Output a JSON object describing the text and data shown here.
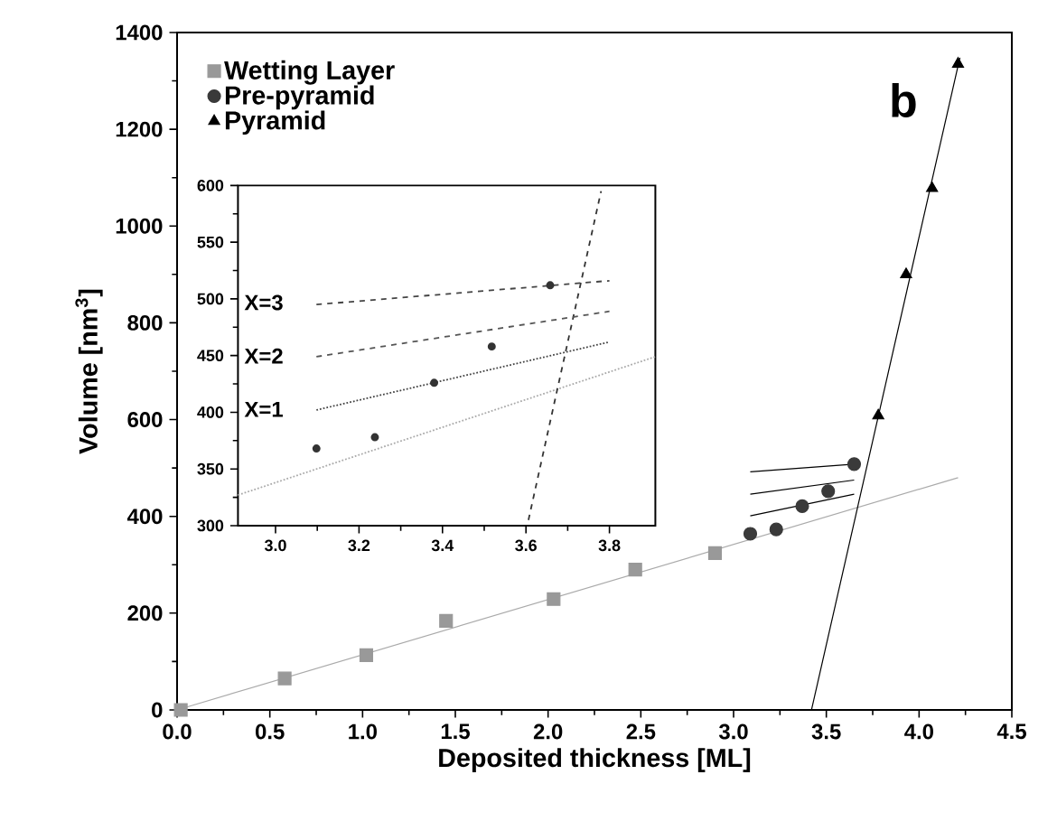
{
  "chart_data": [
    {
      "type": "scatter",
      "xlabel": "Deposited thickness [ML]",
      "ylabel": "Volume [nm$^{3}$]",
      "xlim": [
        0,
        4.5
      ],
      "ylim": [
        0,
        1400
      ],
      "xticks": [
        {
          "value": 0,
          "label": "0.0"
        },
        {
          "value": 0.5,
          "label": "0.5"
        },
        {
          "value": 1,
          "label": "1.0"
        },
        {
          "value": 1.5,
          "label": "1.5"
        },
        {
          "value": 2,
          "label": "2.0"
        },
        {
          "value": 2.5,
          "label": "2.5"
        },
        {
          "value": 3,
          "label": "3.0"
        },
        {
          "value": 3.5,
          "label": "3.5"
        },
        {
          "value": 4,
          "label": "4.0"
        },
        {
          "value": 4.5,
          "label": "4.5"
        }
      ],
      "yticks": [
        0,
        200,
        400,
        600,
        800,
        1000,
        1200,
        1400
      ],
      "legend": "top left",
      "annotations": [
        "b"
      ],
      "series": [
        {
          "type": "line",
          "marker": "none",
          "color": "#aaaaaa",
          "x": [
            0,
            4.21
          ],
          "values": [
            0,
            480
          ]
        },
        {
          "type": "line",
          "marker": "none",
          "color": "#000000",
          "x": [
            3.42,
            4.22
          ],
          "values": [
            0,
            1348
          ]
        },
        {
          "type": "line",
          "marker": "none",
          "color": "#000000",
          "x": [
            3.09,
            3.65
          ],
          "values": [
            492,
            508
          ]
        },
        {
          "type": "line",
          "marker": "none",
          "color": "#000000",
          "x": [
            3.09,
            3.65
          ],
          "values": [
            446,
            475
          ]
        },
        {
          "type": "line",
          "marker": "none",
          "color": "#000000",
          "x": [
            3.09,
            3.65
          ],
          "values": [
            401,
            446
          ]
        },
        {
          "name": "Wetting Layer",
          "marker": "square",
          "color": "#999999",
          "x": [
            0.02,
            0.58,
            1.02,
            1.45,
            2.03,
            2.47,
            2.9
          ],
          "values": [
            0,
            65,
            113,
            184,
            229,
            290,
            324
          ]
        },
        {
          "name": "Pre-pyramid",
          "marker": "circle",
          "color": "#3a3a3a",
          "x": [
            3.09,
            3.23,
            3.37,
            3.51,
            3.65
          ],
          "values": [
            364,
            373,
            421,
            452,
            508
          ]
        },
        {
          "name": "Pyramid",
          "marker": "triangle",
          "color": "#000000",
          "x": [
            3.78,
            3.93,
            4.07,
            4.21
          ],
          "values": [
            608,
            900,
            1078,
            1335
          ]
        }
      ]
    },
    {
      "type": "scatter",
      "xlim": [
        2.91,
        3.91
      ],
      "ylim": [
        300,
        600
      ],
      "xticks": [
        {
          "value": 3.0,
          "label": "3.0"
        },
        {
          "value": 3.2,
          "label": "3.2"
        },
        {
          "value": 3.4,
          "label": "3.4"
        },
        {
          "value": 3.6,
          "label": "3.6"
        },
        {
          "value": 3.8,
          "label": "3.8"
        }
      ],
      "yticks": [
        300,
        350,
        400,
        450,
        500,
        550,
        600
      ],
      "annotations": [
        "X=3",
        "X=2",
        "X=1"
      ],
      "series": [
        {
          "type": "line",
          "marker": "none",
          "line_style": "dotted",
          "color": "#aaaaaa",
          "x": [
            2.91,
            3.91
          ],
          "values": [
            327,
            449
          ]
        },
        {
          "type": "line",
          "marker": "none",
          "line_style": "dashed",
          "color": "#333333",
          "x": [
            3.606,
            3.78
          ],
          "values": [
            305,
            595
          ]
        },
        {
          "type": "line",
          "marker": "none",
          "line_style": "dashed",
          "color": "#444444",
          "x": [
            3.098,
            3.8
          ],
          "values": [
            495,
            516
          ]
        },
        {
          "type": "line",
          "marker": "none",
          "line_style": "dashed",
          "color": "#555555",
          "x": [
            3.098,
            3.8
          ],
          "values": [
            449,
            489
          ]
        },
        {
          "type": "line",
          "marker": "none",
          "line_style": "dotted",
          "color": "#444444",
          "x": [
            3.098,
            3.8
          ],
          "values": [
            402,
            462
          ]
        },
        {
          "marker": "circle",
          "color": "#333333",
          "x": [
            3.098,
            3.238,
            3.38,
            3.518,
            3.658
          ],
          "values": [
            368,
            378,
            426,
            458,
            512
          ]
        }
      ]
    }
  ]
}
